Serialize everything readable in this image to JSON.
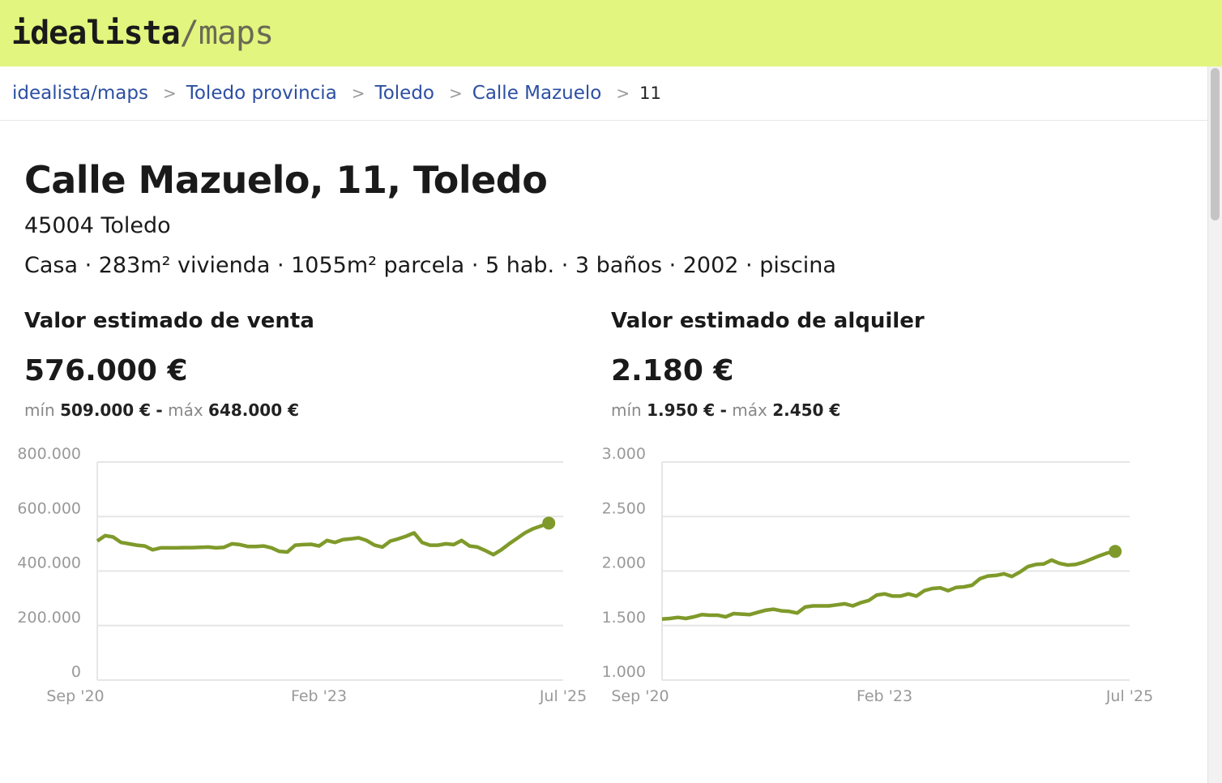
{
  "header": {
    "logo_main": "idealista",
    "logo_sep": "/",
    "logo_sub": "maps"
  },
  "breadcrumb": [
    "idealista/maps",
    "Toledo provincia",
    "Toledo",
    "Calle Mazuelo"
  ],
  "breadcrumb_current": "11",
  "property": {
    "title": "Calle Mazuelo, 11, Toledo",
    "zip": "45004 Toledo",
    "features": "Casa · 283m² vivienda · 1055m² parcela · 5 hab. · 3 baños · 2002 · piscina"
  },
  "sale": {
    "heading": "Valor estimado de venta",
    "value": "576.000 €",
    "min_label": "mín",
    "min": "509.000 €",
    "dash": "-",
    "max_label": "máx",
    "max": "648.000 €"
  },
  "rent": {
    "heading": "Valor estimado de alquiler",
    "value": "2.180 €",
    "min_label": "mín",
    "min": "1.950 €",
    "dash": "-",
    "max_label": "máx",
    "max": "2.450 €"
  },
  "chart_data": [
    {
      "type": "line",
      "title": "Valor estimado de venta",
      "x_ticks": [
        "Sep '20",
        "Feb '23",
        "Jul '25"
      ],
      "x_tick_idx": [
        0,
        29,
        58
      ],
      "x_domain": [
        0,
        58
      ],
      "y_ticks": [
        "0",
        "200.000",
        "400.000",
        "600.000",
        "800.000"
      ],
      "y_tick_values": [
        0,
        200000,
        400000,
        600000,
        800000
      ],
      "ylim": [
        0,
        800000
      ],
      "color": "#7f9a2a",
      "values": [
        510000,
        530000,
        525000,
        505000,
        500000,
        495000,
        492000,
        478000,
        485000,
        485000,
        485000,
        486000,
        486000,
        487000,
        488000,
        485000,
        487000,
        500000,
        497000,
        490000,
        490000,
        492000,
        485000,
        472000,
        470000,
        495000,
        497000,
        498000,
        492000,
        512000,
        505000,
        515000,
        518000,
        522000,
        512000,
        495000,
        488000,
        510000,
        518000,
        528000,
        540000,
        505000,
        495000,
        495000,
        500000,
        497000,
        512000,
        492000,
        488000,
        475000,
        460000,
        478000,
        500000,
        520000,
        540000,
        555000,
        565000,
        576000
      ]
    },
    {
      "type": "line",
      "title": "Valor estimado de alquiler",
      "x_ticks": [
        "Sep '20",
        "Feb '23",
        "Jul '25"
      ],
      "x_tick_idx": [
        0,
        29,
        58
      ],
      "x_domain": [
        0,
        58
      ],
      "y_ticks": [
        "1.000",
        "1.500",
        "2.000",
        "2.500",
        "3.000"
      ],
      "y_tick_values": [
        1000,
        1500,
        2000,
        2500,
        3000
      ],
      "ylim": [
        1000,
        3000
      ],
      "color": "#7f9a2a",
      "values": [
        1560,
        1565,
        1575,
        1565,
        1580,
        1600,
        1595,
        1595,
        1580,
        1610,
        1605,
        1600,
        1620,
        1640,
        1650,
        1635,
        1630,
        1615,
        1670,
        1680,
        1680,
        1680,
        1690,
        1700,
        1680,
        1710,
        1730,
        1780,
        1790,
        1770,
        1770,
        1790,
        1770,
        1820,
        1840,
        1845,
        1820,
        1850,
        1855,
        1870,
        1930,
        1955,
        1960,
        1975,
        1950,
        1990,
        2040,
        2060,
        2065,
        2100,
        2070,
        2055,
        2060,
        2080,
        2110,
        2140,
        2165,
        2180
      ]
    }
  ]
}
